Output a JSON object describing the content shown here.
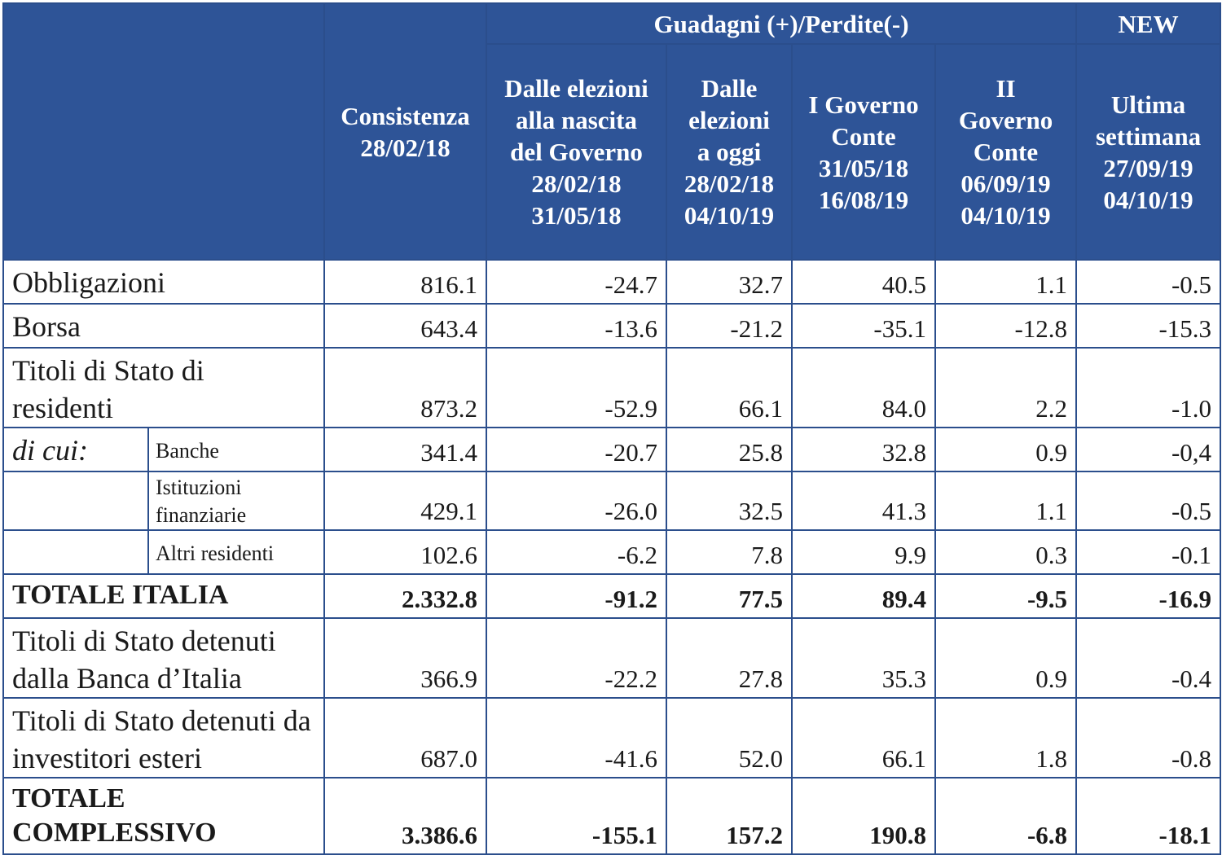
{
  "header": {
    "gains_group": "Guadagni (+)/Perdite(-)",
    "new_group": "NEW",
    "col_consistenza": [
      "Consistenza",
      "28/02/18"
    ],
    "col_elezioni_nascita": [
      "Dalle elezioni",
      "alla nascita",
      "del Governo",
      "28/02/18",
      "31/05/18"
    ],
    "col_elezioni_oggi": [
      "Dalle",
      "elezioni",
      "a oggi",
      "28/02/18",
      "04/10/19"
    ],
    "col_governo1": [
      "I Governo",
      "Conte",
      "31/05/18",
      "16/08/19"
    ],
    "col_governo2": [
      "II",
      "Governo",
      "Conte",
      "06/09/19",
      "04/10/19"
    ],
    "col_ultima": [
      "Ultima",
      "settimana",
      "27/09/19",
      "04/10/19"
    ]
  },
  "rows": [
    {
      "label": "Obbligazioni",
      "values": [
        "816.1",
        "-24.7",
        "32.7",
        "40.5",
        "1.1",
        "-0.5"
      ]
    },
    {
      "label": "Borsa",
      "values": [
        "643.4",
        "-13.6",
        "-21.2",
        "-35.1",
        "-12.8",
        "-15.3"
      ]
    },
    {
      "label": "Titoli di Stato di residenti",
      "values": [
        "873.2",
        "-52.9",
        "66.1",
        "84.0",
        "2.2",
        "-1.0"
      ]
    },
    {
      "prefix": "di cui:",
      "label": "Banche",
      "values": [
        "341.4",
        "-20.7",
        "25.8",
        "32.8",
        "0.9",
        "-0,4"
      ]
    },
    {
      "label": "Istituzioni finanziarie",
      "values": [
        "429.1",
        "-26.0",
        "32.5",
        "41.3",
        "1.1",
        "-0.5"
      ]
    },
    {
      "label": "Altri residenti",
      "values": [
        "102.6",
        "-6.2",
        "7.8",
        "9.9",
        "0.3",
        "-0.1"
      ]
    },
    {
      "label": "TOTALE ITALIA",
      "values": [
        "2.332.8",
        "-91.2",
        "77.5",
        "89.4",
        "-9.5",
        "-16.9"
      ]
    },
    {
      "label": "Titoli di Stato detenuti dalla Banca d’Italia",
      "values": [
        "366.9",
        "-22.2",
        "27.8",
        "35.3",
        "0.9",
        "-0.4"
      ]
    },
    {
      "label": "Titoli di Stato detenuti da investitori esteri",
      "values": [
        "687.0",
        "-41.6",
        "52.0",
        "66.1",
        "1.8",
        "-0.8"
      ]
    },
    {
      "label": "TOTALE COMPLESSIVO",
      "values": [
        "3.386.6",
        "-155.1",
        "157.2",
        "190.8",
        "-6.8",
        "-18.1"
      ]
    }
  ]
}
